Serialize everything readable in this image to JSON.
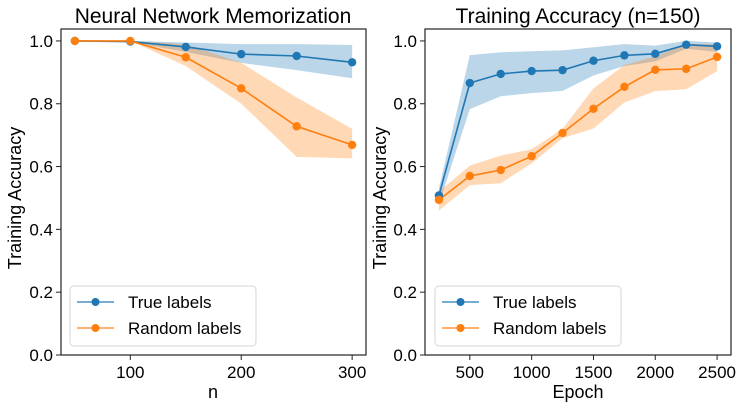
{
  "chart_data": [
    {
      "type": "line",
      "title": "Neural Network Memorization",
      "xlabel": "n",
      "ylabel": "Training Accuracy",
      "x": [
        50,
        100,
        150,
        200,
        250,
        300
      ],
      "xlim": [
        37.5,
        312.5
      ],
      "ylim": [
        0.0,
        1.038
      ],
      "xticks": [
        100,
        200,
        300
      ],
      "xtick_labels": [
        "100",
        "200",
        "300"
      ],
      "yticks": [
        0.0,
        0.2,
        0.4,
        0.6,
        0.8,
        1.0
      ],
      "ytick_labels": [
        "0.0",
        "0.2",
        "0.4",
        "0.6",
        "0.8",
        "1.0"
      ],
      "grid": false,
      "legend_position": "lower-left",
      "series": [
        {
          "name": "True labels",
          "color": "#1f77b4",
          "values": [
            1.0,
            0.998,
            0.981,
            0.958,
            0.952,
            0.932
          ],
          "band_upper": [
            1.0,
            1.0,
            0.995,
            0.99,
            0.99,
            0.987
          ],
          "band_lower": [
            1.0,
            0.996,
            0.965,
            0.93,
            0.907,
            0.881
          ]
        },
        {
          "name": "Random labels",
          "color": "#ff7f0e",
          "values": [
            1.0,
            1.0,
            0.948,
            0.849,
            0.728,
            0.669
          ],
          "band_upper": [
            1.0,
            1.0,
            0.99,
            0.93,
            0.82,
            0.72
          ],
          "band_lower": [
            1.0,
            1.0,
            0.92,
            0.8,
            0.631,
            0.626
          ]
        }
      ]
    },
    {
      "type": "line",
      "title": "Training Accuracy (n=150)",
      "xlabel": "Epoch",
      "ylabel": "Training Accuracy",
      "x": [
        250,
        500,
        750,
        1000,
        1250,
        1500,
        1750,
        2000,
        2250,
        2500
      ],
      "xlim": [
        137.5,
        2612.5
      ],
      "ylim": [
        0.0,
        1.038
      ],
      "xticks": [
        500,
        1000,
        1500,
        2000,
        2500
      ],
      "xtick_labels": [
        "500",
        "1000",
        "1500",
        "2000",
        "2500"
      ],
      "yticks": [
        0.0,
        0.2,
        0.4,
        0.6,
        0.8,
        1.0
      ],
      "ytick_labels": [
        "0.0",
        "0.2",
        "0.4",
        "0.6",
        "0.8",
        "1.0"
      ],
      "grid": false,
      "legend_position": "lower-left",
      "series": [
        {
          "name": "True labels",
          "color": "#1f77b4",
          "values": [
            0.508,
            0.866,
            0.895,
            0.904,
            0.907,
            0.937,
            0.954,
            0.959,
            0.988,
            0.983
          ],
          "band_upper": [
            0.53,
            0.955,
            0.964,
            0.967,
            0.97,
            0.98,
            0.99,
            0.985,
            1.0,
            0.995
          ],
          "band_lower": [
            0.48,
            0.783,
            0.824,
            0.834,
            0.841,
            0.89,
            0.92,
            0.935,
            0.975,
            0.965
          ]
        },
        {
          "name": "Random labels",
          "color": "#ff7f0e",
          "values": [
            0.494,
            0.57,
            0.589,
            0.633,
            0.707,
            0.784,
            0.854,
            0.908,
            0.911,
            0.949
          ],
          "band_upper": [
            0.52,
            0.603,
            0.635,
            0.655,
            0.72,
            0.849,
            0.923,
            0.951,
            0.99,
            0.99
          ],
          "band_lower": [
            0.46,
            0.541,
            0.547,
            0.61,
            0.69,
            0.721,
            0.804,
            0.84,
            0.846,
            0.904
          ]
        }
      ]
    }
  ]
}
